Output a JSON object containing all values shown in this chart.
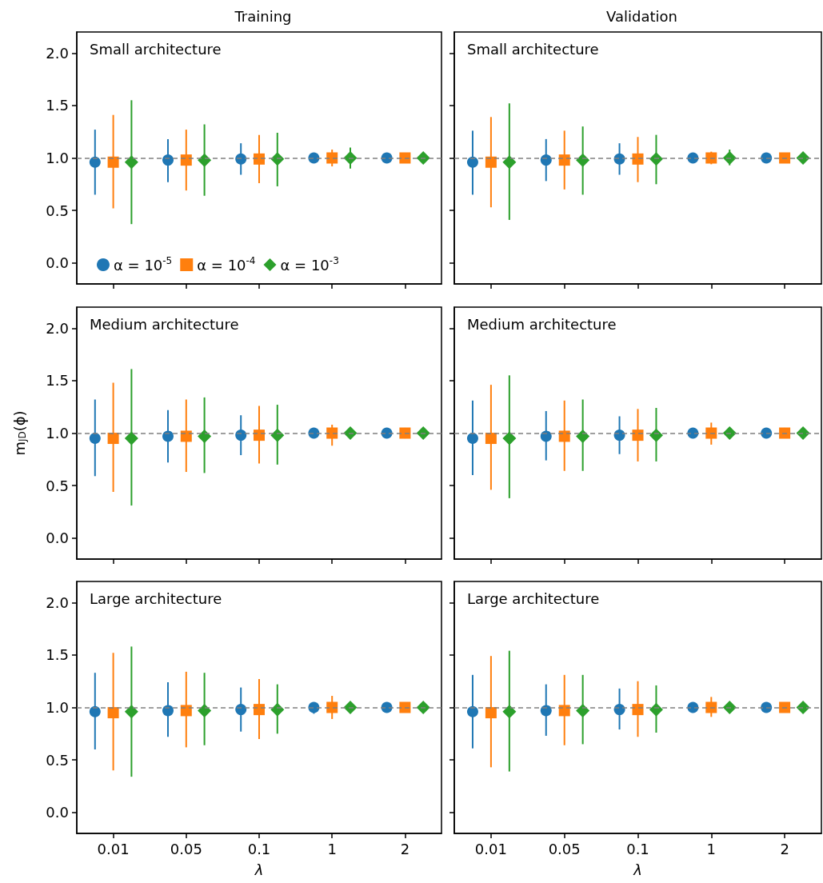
{
  "chart_data": [
    {
      "type": "scatter",
      "title": "Training",
      "annotations": [
        "Small architecture"
      ],
      "categories": [
        "0.01",
        "0.05",
        "0.1",
        "1",
        "2"
      ],
      "ylim": [
        -0.2,
        2.2
      ],
      "yticks": [
        {
          "value": 0,
          "label": "0.0"
        },
        {
          "value": 0.5,
          "label": "0.5"
        },
        {
          "value": 1,
          "label": "1.0"
        },
        {
          "value": 1.5,
          "label": "1.5"
        },
        {
          "value": 2,
          "label": "2.0"
        }
      ],
      "grid": false,
      "tick_labels": "y",
      "legend": "bottom",
      "ref_lines": [
        {
          "axis": "y",
          "value": 1,
          "color": "#808080",
          "line_style": "dashed"
        }
      ],
      "series": [
        {
          "name": "α = 10$^{-5}$",
          "color": "#1f77b4",
          "marker": "circle",
          "values": [
            0.96,
            0.98,
            0.99,
            1.0,
            1.0
          ],
          "errors": [
            [
              0.65,
              1.27
            ],
            [
              0.77,
              1.18
            ],
            [
              0.84,
              1.14
            ],
            null,
            null
          ]
        },
        {
          "name": "α = 10$^{-4}$",
          "color": "#ff7f0e",
          "marker": "square",
          "values": [
            0.96,
            0.98,
            0.99,
            1.0,
            1.0
          ],
          "errors": [
            [
              0.52,
              1.41
            ],
            [
              0.69,
              1.27
            ],
            [
              0.76,
              1.22
            ],
            [
              0.92,
              1.08
            ],
            [
              0.97,
              1.04
            ]
          ]
        },
        {
          "name": "α = 10$^{-3}$",
          "color": "#2ca02c",
          "marker": "diamond",
          "values": [
            0.96,
            0.98,
            0.99,
            1.0,
            1.0
          ],
          "errors": [
            [
              0.37,
              1.55
            ],
            [
              0.64,
              1.32
            ],
            [
              0.73,
              1.24
            ],
            [
              0.9,
              1.1
            ],
            null
          ]
        }
      ]
    },
    {
      "type": "scatter",
      "title": "Validation",
      "annotations": [
        "Small architecture"
      ],
      "categories": [
        "0.01",
        "0.05",
        "0.1",
        "1",
        "2"
      ],
      "ylim": [
        -0.2,
        2.2
      ],
      "yticks": [
        {
          "value": 0,
          "label": null
        },
        {
          "value": 0.5,
          "label": null
        },
        {
          "value": 1,
          "label": null
        },
        {
          "value": 1.5,
          "label": null
        },
        {
          "value": 2,
          "label": null
        }
      ],
      "grid": false,
      "tick_labels": false,
      "ref_lines": [
        {
          "axis": "y",
          "value": 1,
          "color": "#808080",
          "line_style": "dashed"
        }
      ],
      "series": [
        {
          "color": "#1f77b4",
          "marker": "circle",
          "values": [
            0.96,
            0.98,
            0.99,
            1.0,
            1.0
          ],
          "errors": [
            [
              0.65,
              1.26
            ],
            [
              0.78,
              1.18
            ],
            [
              0.84,
              1.14
            ],
            null,
            null
          ]
        },
        {
          "color": "#ff7f0e",
          "marker": "square",
          "values": [
            0.96,
            0.98,
            0.99,
            1.0,
            1.0
          ],
          "errors": [
            [
              0.53,
              1.39
            ],
            [
              0.7,
              1.26
            ],
            [
              0.77,
              1.2
            ],
            [
              0.94,
              1.06
            ],
            [
              0.98,
              1.02
            ]
          ]
        },
        {
          "color": "#2ca02c",
          "marker": "diamond",
          "values": [
            0.96,
            0.98,
            0.99,
            1.0,
            1.0
          ],
          "errors": [
            [
              0.41,
              1.52
            ],
            [
              0.65,
              1.3
            ],
            [
              0.75,
              1.22
            ],
            [
              0.93,
              1.08
            ],
            null
          ]
        }
      ]
    },
    {
      "type": "scatter",
      "annotations": [
        "Medium architecture"
      ],
      "ylabel": "m$_{JD}$(ϕ)",
      "categories": [
        "0.01",
        "0.05",
        "0.1",
        "1",
        "2"
      ],
      "ylim": [
        -0.2,
        2.2
      ],
      "yticks": [
        {
          "value": 0,
          "label": "0.0"
        },
        {
          "value": 0.5,
          "label": "0.5"
        },
        {
          "value": 1,
          "label": "1.0"
        },
        {
          "value": 1.5,
          "label": "1.5"
        },
        {
          "value": 2,
          "label": "2.0"
        }
      ],
      "grid": false,
      "tick_labels": "y",
      "ref_lines": [
        {
          "axis": "y",
          "value": 1,
          "color": "#808080",
          "line_style": "dashed"
        }
      ],
      "series": [
        {
          "color": "#1f77b4",
          "marker": "circle",
          "values": [
            0.95,
            0.97,
            0.98,
            1.0,
            1.0
          ],
          "errors": [
            [
              0.59,
              1.32
            ],
            [
              0.72,
              1.22
            ],
            [
              0.79,
              1.17
            ],
            [
              0.96,
              1.05
            ],
            null
          ]
        },
        {
          "color": "#ff7f0e",
          "marker": "square",
          "values": [
            0.95,
            0.97,
            0.98,
            1.0,
            1.0
          ],
          "errors": [
            [
              0.44,
              1.48
            ],
            [
              0.63,
              1.32
            ],
            [
              0.71,
              1.26
            ],
            [
              0.88,
              1.08
            ],
            [
              0.95,
              1.05
            ]
          ]
        },
        {
          "color": "#2ca02c",
          "marker": "diamond",
          "values": [
            0.95,
            0.97,
            0.98,
            1.0,
            1.0
          ],
          "errors": [
            [
              0.31,
              1.61
            ],
            [
              0.62,
              1.34
            ],
            [
              0.7,
              1.27
            ],
            null,
            null
          ]
        }
      ]
    },
    {
      "type": "scatter",
      "annotations": [
        "Medium architecture"
      ],
      "categories": [
        "0.01",
        "0.05",
        "0.1",
        "1",
        "2"
      ],
      "ylim": [
        -0.2,
        2.2
      ],
      "yticks": [
        {
          "value": 0,
          "label": null
        },
        {
          "value": 0.5,
          "label": null
        },
        {
          "value": 1,
          "label": null
        },
        {
          "value": 1.5,
          "label": null
        },
        {
          "value": 2,
          "label": null
        }
      ],
      "grid": false,
      "tick_labels": false,
      "ref_lines": [
        {
          "axis": "y",
          "value": 1,
          "color": "#808080",
          "line_style": "dashed"
        }
      ],
      "series": [
        {
          "color": "#1f77b4",
          "marker": "circle",
          "values": [
            0.95,
            0.97,
            0.98,
            1.0,
            1.0
          ],
          "errors": [
            [
              0.6,
              1.31
            ],
            [
              0.74,
              1.21
            ],
            [
              0.8,
              1.16
            ],
            [
              0.96,
              1.04
            ],
            null
          ]
        },
        {
          "color": "#ff7f0e",
          "marker": "square",
          "values": [
            0.95,
            0.97,
            0.98,
            1.0,
            1.0
          ],
          "errors": [
            [
              0.46,
              1.46
            ],
            [
              0.64,
              1.31
            ],
            [
              0.73,
              1.23
            ],
            [
              0.89,
              1.1
            ],
            [
              0.96,
              1.05
            ]
          ]
        },
        {
          "color": "#2ca02c",
          "marker": "diamond",
          "values": [
            0.95,
            0.97,
            0.98,
            1.0,
            1.0
          ],
          "errors": [
            [
              0.38,
              1.55
            ],
            [
              0.64,
              1.32
            ],
            [
              0.73,
              1.24
            ],
            null,
            null
          ]
        }
      ]
    },
    {
      "type": "scatter",
      "annotations": [
        "Large architecture"
      ],
      "xlabel": "λ",
      "categories": [
        "0.01",
        "0.05",
        "0.1",
        "1",
        "2"
      ],
      "ylim": [
        -0.2,
        2.2
      ],
      "yticks": [
        {
          "value": 0,
          "label": "0.0"
        },
        {
          "value": 0.5,
          "label": "0.5"
        },
        {
          "value": 1,
          "label": "1.0"
        },
        {
          "value": 1.5,
          "label": "1.5"
        },
        {
          "value": 2,
          "label": "2.0"
        }
      ],
      "grid": false,
      "ref_lines": [
        {
          "axis": "y",
          "value": 1,
          "color": "#808080",
          "line_style": "dashed"
        }
      ],
      "series": [
        {
          "color": "#1f77b4",
          "marker": "circle",
          "values": [
            0.96,
            0.97,
            0.98,
            1.0,
            1.0
          ],
          "errors": [
            [
              0.6,
              1.33
            ],
            [
              0.72,
              1.24
            ],
            [
              0.77,
              1.19
            ],
            [
              0.94,
              1.04
            ],
            null
          ]
        },
        {
          "color": "#ff7f0e",
          "marker": "square",
          "values": [
            0.95,
            0.97,
            0.98,
            1.0,
            1.0
          ],
          "errors": [
            [
              0.4,
              1.52
            ],
            [
              0.62,
              1.34
            ],
            [
              0.7,
              1.27
            ],
            [
              0.89,
              1.11
            ],
            [
              0.96,
              1.04
            ]
          ]
        },
        {
          "color": "#2ca02c",
          "marker": "diamond",
          "values": [
            0.96,
            0.97,
            0.98,
            1.0,
            1.0
          ],
          "errors": [
            [
              0.34,
              1.58
            ],
            [
              0.64,
              1.33
            ],
            [
              0.75,
              1.22
            ],
            null,
            null
          ]
        }
      ]
    },
    {
      "type": "scatter",
      "annotations": [
        "Large architecture"
      ],
      "xlabel": "λ",
      "categories": [
        "0.01",
        "0.05",
        "0.1",
        "1",
        "2"
      ],
      "ylim": [
        -0.2,
        2.2
      ],
      "yticks": [
        {
          "value": 0,
          "label": null
        },
        {
          "value": 0.5,
          "label": null
        },
        {
          "value": 1,
          "label": null
        },
        {
          "value": 1.5,
          "label": null
        },
        {
          "value": 2,
          "label": null
        }
      ],
      "grid": false,
      "tick_labels": "x",
      "ref_lines": [
        {
          "axis": "y",
          "value": 1,
          "color": "#808080",
          "line_style": "dashed"
        }
      ],
      "series": [
        {
          "color": "#1f77b4",
          "marker": "circle",
          "values": [
            0.96,
            0.97,
            0.98,
            1.0,
            1.0
          ],
          "errors": [
            [
              0.61,
              1.31
            ],
            [
              0.73,
              1.22
            ],
            [
              0.79,
              1.18
            ],
            [
              0.95,
              1.04
            ],
            null
          ]
        },
        {
          "color": "#ff7f0e",
          "marker": "square",
          "values": [
            0.95,
            0.97,
            0.98,
            1.0,
            1.0
          ],
          "errors": [
            [
              0.43,
              1.49
            ],
            [
              0.64,
              1.31
            ],
            [
              0.72,
              1.25
            ],
            [
              0.91,
              1.1
            ],
            [
              0.97,
              1.03
            ]
          ]
        },
        {
          "color": "#2ca02c",
          "marker": "diamond",
          "values": [
            0.96,
            0.97,
            0.98,
            1.0,
            1.0
          ],
          "errors": [
            [
              0.39,
              1.54
            ],
            [
              0.65,
              1.31
            ],
            [
              0.76,
              1.21
            ],
            null,
            null
          ]
        }
      ]
    }
  ]
}
